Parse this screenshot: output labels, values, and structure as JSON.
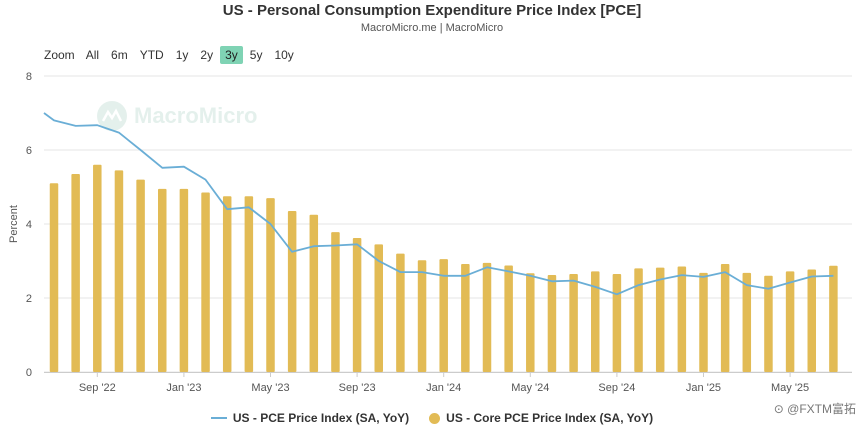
{
  "header": {
    "title": "US - Personal Consumption Expenditure Price Index [PCE]",
    "subtitle": "MacroMicro.me | MacroMicro"
  },
  "zoom": {
    "label": "Zoom",
    "buttons": [
      "All",
      "6m",
      "YTD",
      "1y",
      "2y",
      "3y",
      "5y",
      "10y"
    ],
    "active": "3y"
  },
  "watermark": {
    "text": "MacroMicro"
  },
  "corner_mark": {
    "text": "⊙ @FXTM富拓"
  },
  "colors": {
    "line": "#6aaed6",
    "bars": "#e2bb55",
    "grid": "#e6e6e6",
    "active_zoom": "#7fd3b4"
  },
  "chart_data": {
    "type": "bar",
    "ylabel": "Percent",
    "ylim": [
      0,
      8
    ],
    "yticks": [
      0,
      2,
      4,
      6,
      8
    ],
    "grid": true,
    "legend_position": "bottom",
    "xticks": [
      "Sep '22",
      "Jan '23",
      "May '23",
      "Sep '23",
      "Jan '24",
      "May '24",
      "Sep '24",
      "Jan '25",
      "May '25"
    ],
    "categories": [
      "2022-07",
      "2022-08",
      "2022-09",
      "2022-10",
      "2022-11",
      "2022-12",
      "2023-01",
      "2023-02",
      "2023-03",
      "2023-04",
      "2023-05",
      "2023-06",
      "2023-07",
      "2023-08",
      "2023-09",
      "2023-10",
      "2023-11",
      "2023-12",
      "2024-01",
      "2024-02",
      "2024-03",
      "2024-04",
      "2024-05",
      "2024-06",
      "2024-07",
      "2024-08",
      "2024-09",
      "2024-10",
      "2024-11",
      "2024-12",
      "2025-01",
      "2025-02",
      "2025-03",
      "2025-04",
      "2025-05",
      "2025-06",
      "2025-07"
    ],
    "series": [
      {
        "name": "US - PCE Price Index (SA, YoY)",
        "type": "line",
        "x": [
          "2022-06",
          "2022-07",
          "2022-08",
          "2022-09",
          "2022-10",
          "2022-11",
          "2022-12",
          "2023-01",
          "2023-02",
          "2023-03",
          "2023-04",
          "2023-05",
          "2023-06",
          "2023-07",
          "2023-08",
          "2023-09",
          "2023-10",
          "2023-11",
          "2023-12",
          "2024-01",
          "2024-02",
          "2024-03",
          "2024-04",
          "2024-05",
          "2024-06",
          "2024-07",
          "2024-08",
          "2024-09",
          "2024-10",
          "2024-11",
          "2024-12",
          "2025-01",
          "2025-02",
          "2025-03",
          "2025-04",
          "2025-05",
          "2025-06",
          "2025-07"
        ],
        "values": [
          7.0,
          6.8,
          6.65,
          6.67,
          6.47,
          6.0,
          5.52,
          5.55,
          5.2,
          4.4,
          4.45,
          4.0,
          3.25,
          3.4,
          3.42,
          3.45,
          3.0,
          2.7,
          2.7,
          2.6,
          2.6,
          2.83,
          2.72,
          2.6,
          2.45,
          2.47,
          2.3,
          2.1,
          2.35,
          2.5,
          2.62,
          2.57,
          2.7,
          2.35,
          2.25,
          2.42,
          2.58,
          2.6
        ]
      },
      {
        "name": "US - Core PCE Price Index (SA, YoY)",
        "type": "bar",
        "values": [
          5.1,
          5.35,
          5.6,
          5.45,
          5.2,
          4.95,
          4.95,
          4.85,
          4.75,
          4.75,
          4.7,
          4.35,
          4.25,
          3.78,
          3.62,
          3.45,
          3.2,
          3.02,
          3.05,
          2.92,
          2.95,
          2.88,
          2.67,
          2.62,
          2.65,
          2.72,
          2.65,
          2.8,
          2.82,
          2.85,
          2.68,
          2.92,
          2.68,
          2.6,
          2.72,
          2.77,
          2.87
        ]
      }
    ]
  }
}
